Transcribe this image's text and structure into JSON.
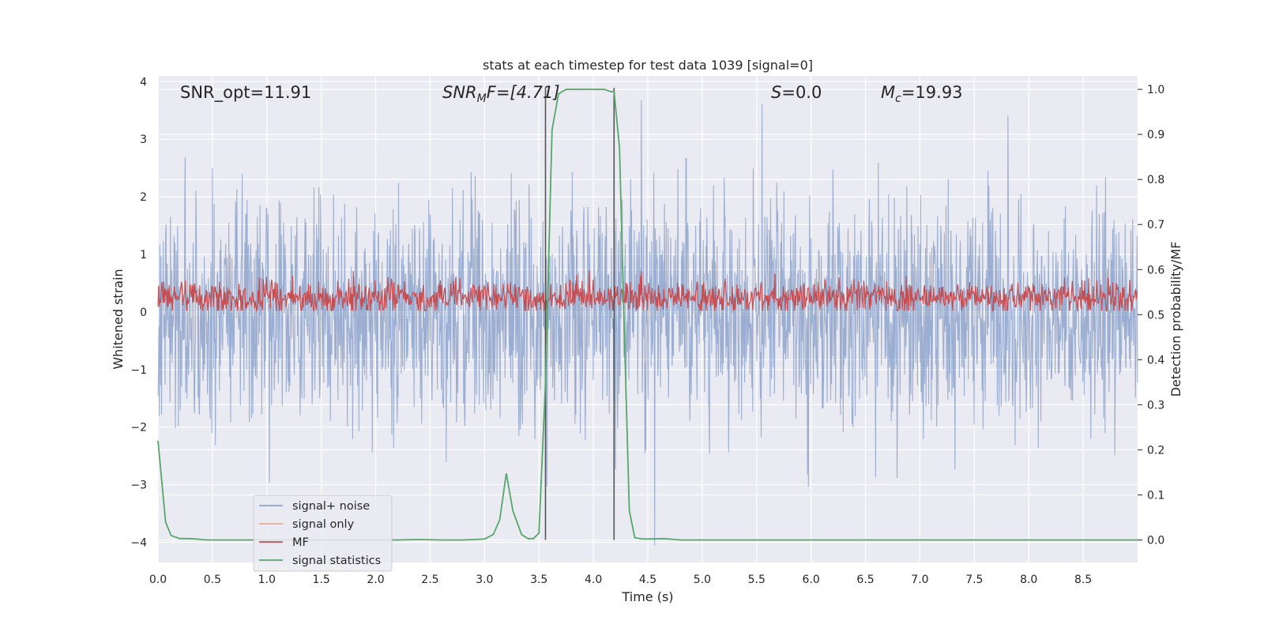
{
  "chart_data": {
    "type": "line",
    "title": "stats at each timestep for test data 1039 [signal=0]",
    "xlabel": "Time (s)",
    "ylabel": "Whitened strain",
    "ylabel_right": "Detection probability/MF",
    "xlim": [
      0.0,
      9.0
    ],
    "ylim": [
      -4.35,
      4.1
    ],
    "ylim_right": [
      -0.05,
      1.03
    ],
    "xticks": [
      "0.0",
      "0.5",
      "1.0",
      "1.5",
      "2.0",
      "2.5",
      "3.0",
      "3.5",
      "4.0",
      "4.5",
      "5.0",
      "5.5",
      "6.0",
      "6.5",
      "7.0",
      "7.5",
      "8.0",
      "8.5"
    ],
    "yticks": [
      "−4",
      "−3",
      "−2",
      "−1",
      "0",
      "1",
      "2",
      "3",
      "4"
    ],
    "yticks_right": [
      "0.0",
      "0.1",
      "0.2",
      "0.3",
      "0.4",
      "0.5",
      "0.6",
      "0.7",
      "0.8",
      "0.9",
      "1.0"
    ],
    "annotations": {
      "snr_opt": "SNR_opt=11.91",
      "snr_mf_prefix": "SNR",
      "snr_mf_sub": "M",
      "snr_mf_suffix": "F=[4.71]",
      "s_label": "S",
      "s_value": "=0.0",
      "mc_label": "M",
      "mc_sub": "c",
      "mc_value": "=19.93"
    },
    "vlines": [
      3.56,
      4.19
    ],
    "series": [
      {
        "name": "signal+ noise",
        "color": "#4c72b0",
        "alpha": 0.5,
        "noise_sigma": 0.95,
        "axis": "left"
      },
      {
        "name": "signal only",
        "color": "#dd8452",
        "alpha": 0.5,
        "values": [],
        "axis": "left"
      },
      {
        "name": "MF",
        "color": "#c44e52",
        "mean": 0.25,
        "noise_sigma": 0.14,
        "axis": "left"
      },
      {
        "name": "signal statistics",
        "color": "#55a868",
        "axis": "right",
        "x": [
          0.0,
          0.07,
          0.12,
          0.2,
          0.3,
          0.45,
          0.6,
          1.0,
          1.5,
          2.0,
          2.2,
          2.4,
          2.6,
          2.8,
          3.0,
          3.08,
          3.14,
          3.2,
          3.26,
          3.34,
          3.4,
          3.45,
          3.5,
          3.56,
          3.62,
          3.68,
          3.75,
          3.9,
          4.1,
          4.16,
          4.19,
          4.24,
          4.28,
          4.33,
          4.38,
          4.45,
          4.5,
          4.65,
          4.8,
          5.0,
          6.0,
          7.0,
          8.0,
          9.0
        ],
        "y": [
          0.22,
          0.04,
          0.01,
          0.003,
          0.003,
          0.0,
          0.0,
          0.0,
          0.0,
          0.0,
          0.0,
          0.001,
          0.0,
          0.0,
          0.002,
          0.012,
          0.045,
          0.148,
          0.065,
          0.012,
          0.003,
          0.003,
          0.015,
          0.35,
          0.91,
          0.99,
          1.0,
          1.0,
          1.0,
          0.995,
          0.995,
          0.87,
          0.5,
          0.065,
          0.005,
          0.002,
          0.002,
          0.003,
          0.0,
          0.0,
          0.0,
          0.0,
          0.0,
          0.0
        ]
      }
    ],
    "legend_location": "lower-left"
  }
}
